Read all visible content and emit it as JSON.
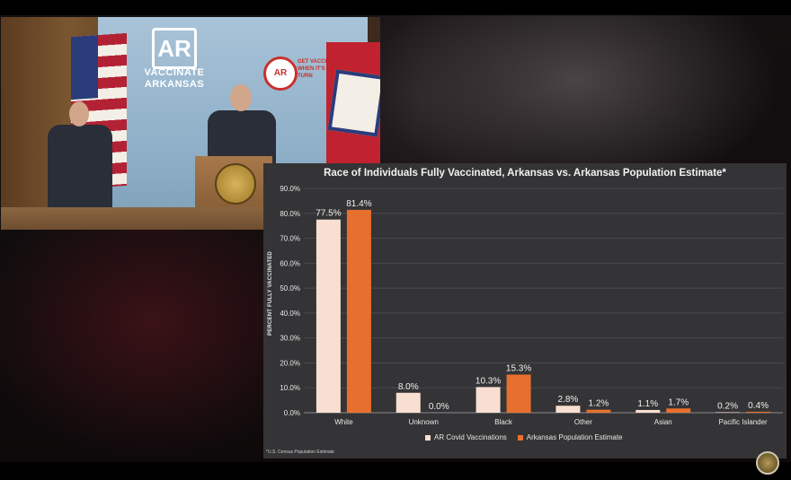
{
  "chart_data": {
    "type": "bar",
    "title": "Race of Individuals Fully Vaccinated, Arkansas vs. Arkansas Population Estimate*",
    "ylabel": "PERCENT FULLY VACCINATED",
    "xlabel": "",
    "ylim": [
      0,
      90
    ],
    "yticks": [
      "0.0%",
      "10.0%",
      "20.0%",
      "30.0%",
      "40.0%",
      "50.0%",
      "60.0%",
      "70.0%",
      "80.0%",
      "90.0%"
    ],
    "categories": [
      "White",
      "Unknown",
      "Black",
      "Other",
      "Asian",
      "Pacific Islander"
    ],
    "series": [
      {
        "name": "AR Covid Vaccinations",
        "color": "#f8dfd1",
        "values": [
          77.5,
          8.0,
          10.3,
          2.8,
          1.1,
          0.2
        ],
        "labels": [
          "77.5%",
          "8.0%",
          "10.3%",
          "2.8%",
          "1.1%",
          "0.2%"
        ]
      },
      {
        "name": "Arkansas Population Estimate",
        "color": "#e8702e",
        "values": [
          81.4,
          0.0,
          15.3,
          1.2,
          1.7,
          0.4
        ],
        "labels": [
          "81.4%",
          "0.0%",
          "15.3%",
          "1.2%",
          "1.7%",
          "0.4%"
        ]
      }
    ],
    "grid": true,
    "legend_position": "bottom",
    "footnote": "*U.S. Census Population Estimate"
  },
  "video": {
    "backdrop_logo": "AR",
    "backdrop_text_line1": "VACCINATE",
    "backdrop_text_line2": "ARKANSAS",
    "backdrop_seal": "AR",
    "backdrop_slogan": "GET VACCINATED WHEN IT'S YOUR TURN"
  },
  "colors": {
    "panel_bg": "#343436",
    "gridline": "#4a4a4c",
    "axis_text": "#e8e8e8"
  }
}
